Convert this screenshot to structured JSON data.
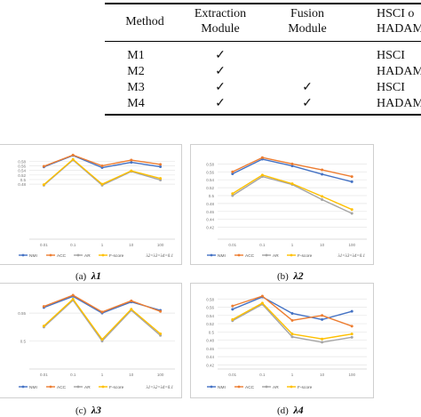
{
  "table": {
    "headers": {
      "method": "Method",
      "extraction_l1": "Extraction",
      "extraction_l2": "Module",
      "fusion_l1": "Fusion",
      "fusion_l2": "Module",
      "hsci_l1": "HSCI o",
      "hsci_l2": "HADAM"
    },
    "rows": [
      {
        "method": "M1",
        "extraction": "✓",
        "fusion": "",
        "hsci": "HSCI"
      },
      {
        "method": "M2",
        "extraction": "✓",
        "fusion": "",
        "hsci": "HADAM"
      },
      {
        "method": "M3",
        "extraction": "✓",
        "fusion": "✓",
        "hsci": "HSCI"
      },
      {
        "method": "M4",
        "extraction": "✓",
        "fusion": "✓",
        "hsci": "HADAM"
      }
    ]
  },
  "captions": {
    "a": {
      "label": "(a)",
      "lambda": "λ1"
    },
    "b": {
      "label": "(b)",
      "lambda": "λ2"
    },
    "c": {
      "label": "(c)",
      "lambda": "λ3"
    },
    "d": {
      "label": "(d)",
      "lambda": "λ4"
    }
  },
  "colors": {
    "NMI": "#4472c4",
    "ACC": "#ed7d31",
    "AR": "#a5a5a5",
    "F-score": "#ffc000"
  },
  "chart_data": [
    {
      "type": "line",
      "categories": [
        "0.01",
        "0.1",
        "1",
        "10",
        "100"
      ],
      "ylim": [
        0.24,
        0.62
      ],
      "yticks": [
        "0.58",
        "0.56",
        "0.54",
        "0.52",
        "0.5",
        "0.48"
      ],
      "series": [
        {
          "name": "NMI",
          "values": [
            0.555,
            0.605,
            0.552,
            0.575,
            0.556
          ]
        },
        {
          "name": "ACC",
          "values": [
            0.558,
            0.607,
            0.56,
            0.585,
            0.566
          ]
        },
        {
          "name": "AR",
          "values": [
            0.475,
            0.585,
            0.475,
            0.535,
            0.498
          ]
        },
        {
          "name": "F-score",
          "values": [
            0.478,
            0.588,
            0.48,
            0.538,
            0.505
          ]
        }
      ],
      "legend": [
        "NMI",
        "ACC",
        "AR",
        "F-score"
      ],
      "note": "λ2=λ3=λ4=0.1"
    },
    {
      "type": "line",
      "categories": [
        "0.01",
        "0.1",
        "1",
        "10",
        "100"
      ],
      "ylim": [
        0.39,
        0.61
      ],
      "yticks": [
        "0.58",
        "0.56",
        "0.54",
        "0.52",
        "0.5",
        "0.48",
        "0.46",
        "0.44",
        "0.42"
      ],
      "series": [
        {
          "name": "NMI",
          "values": [
            0.555,
            0.592,
            0.575,
            0.554,
            0.535
          ]
        },
        {
          "name": "ACC",
          "values": [
            0.56,
            0.596,
            0.58,
            0.565,
            0.548
          ]
        },
        {
          "name": "AR",
          "values": [
            0.5,
            0.548,
            0.528,
            0.49,
            0.455
          ]
        },
        {
          "name": "F-score",
          "values": [
            0.505,
            0.552,
            0.53,
            0.498,
            0.465
          ]
        }
      ],
      "legend": [
        "NMI",
        "ACC",
        "AR",
        "F-score"
      ],
      "note": "λ1=λ3=λ4=0.1"
    },
    {
      "type": "line",
      "categories": [
        "0.01",
        "0.1",
        "1",
        "10",
        "100"
      ],
      "ylim": [
        0.45,
        0.59
      ],
      "yticks": [
        "0.55",
        "0.5"
      ],
      "series": [
        {
          "name": "NMI",
          "values": [
            0.56,
            0.58,
            0.55,
            0.57,
            0.555
          ]
        },
        {
          "name": "ACC",
          "values": [
            0.562,
            0.582,
            0.552,
            0.572,
            0.553
          ]
        },
        {
          "name": "AR",
          "values": [
            0.525,
            0.573,
            0.5,
            0.555,
            0.51
          ]
        },
        {
          "name": "F-score",
          "values": [
            0.527,
            0.575,
            0.503,
            0.557,
            0.513
          ]
        }
      ],
      "legend": [
        "NMI",
        "ACC",
        "AR",
        "F-score"
      ],
      "note": "λ1=λ2=λ4=0.1"
    },
    {
      "type": "line",
      "categories": [
        "0.01",
        "0.1",
        "1",
        "10",
        "100"
      ],
      "ylim": [
        0.41,
        0.6
      ],
      "yticks": [
        "0.58",
        "0.56",
        "0.54",
        "0.52",
        "0.5",
        "0.48",
        "0.46",
        "0.44",
        "0.42"
      ],
      "series": [
        {
          "name": "NMI",
          "values": [
            0.555,
            0.585,
            0.545,
            0.53,
            0.55
          ]
        },
        {
          "name": "ACC",
          "values": [
            0.563,
            0.587,
            0.528,
            0.54,
            0.514
          ]
        },
        {
          "name": "AR",
          "values": [
            0.527,
            0.567,
            0.488,
            0.475,
            0.487
          ]
        },
        {
          "name": "F-score",
          "values": [
            0.53,
            0.57,
            0.495,
            0.483,
            0.495
          ]
        }
      ],
      "legend": [
        "NMI",
        "ACC",
        "AR",
        "F-score"
      ],
      "note": ""
    }
  ]
}
